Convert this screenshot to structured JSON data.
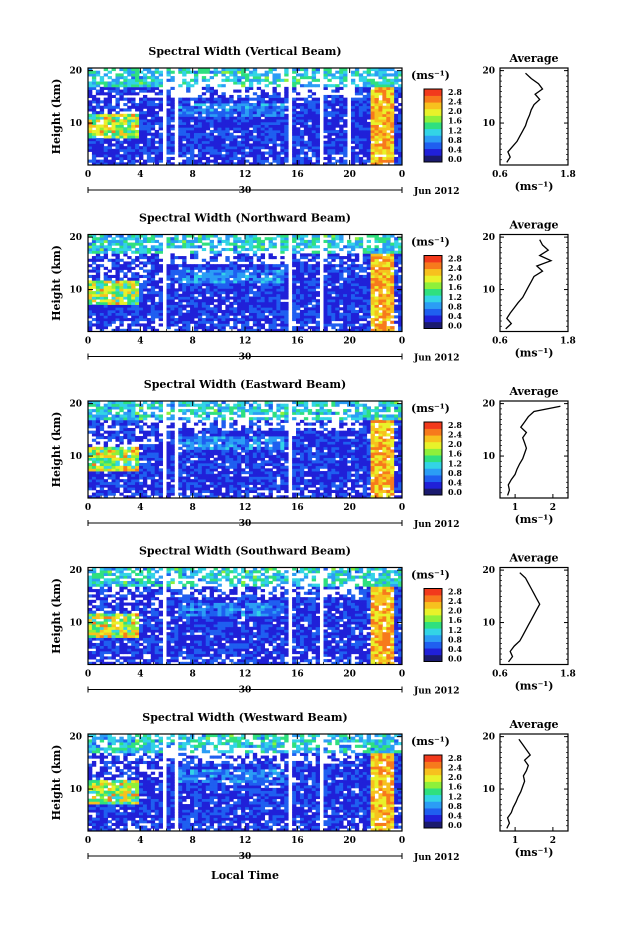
{
  "colorbar": {
    "unit": "(ms⁻¹)",
    "ticks": [
      "0.0",
      "0.4",
      "0.8",
      "1.2",
      "1.6",
      "2.0",
      "2.4",
      "2.8"
    ],
    "colors": [
      "#1a1a6e",
      "#2020d8",
      "#1f5ff0",
      "#2b9df5",
      "#33d4e6",
      "#2fe07f",
      "#8ef03a",
      "#e8f22a",
      "#f7c11e",
      "#f77a1c",
      "#f23a1c"
    ]
  },
  "xlabel": "Local Time",
  "date_label": "30",
  "month_label": "Jun 2012",
  "average_title": "Average",
  "average_unit": "(ms⁻¹)",
  "chart_data": [
    {
      "type": "heatmap",
      "title": "Spectral Width (Vertical Beam)",
      "ylabel": "Height (km)",
      "xticks": [
        "0",
        "4",
        "8",
        "12",
        "16",
        "20",
        "0"
      ],
      "xlim": [
        0,
        24
      ],
      "yticks": [
        "10",
        "20"
      ],
      "ylim": [
        2,
        20.5
      ],
      "gaps": [
        [
          5.6,
          6.0
        ],
        [
          6.6,
          7.0
        ],
        [
          15.4,
          15.7
        ],
        [
          17.6,
          17.9
        ],
        [
          19.7,
          20.0
        ]
      ],
      "avg_xticks": [
        "0.6",
        "1.8"
      ],
      "avg_xlim": [
        0.6,
        1.8
      ],
      "average_profile": {
        "height": [
          2.5,
          3.5,
          4.5,
          5.5,
          6.5,
          7.5,
          8.5,
          9.5,
          10.5,
          11.5,
          12.5,
          13.5,
          14.5,
          15.5,
          16.5,
          17.5,
          18.5,
          19.5
        ],
        "value": [
          0.72,
          0.78,
          0.74,
          0.82,
          0.9,
          0.95,
          1.0,
          1.05,
          1.08,
          1.12,
          1.15,
          1.2,
          1.3,
          1.22,
          1.35,
          1.28,
          1.15,
          1.05
        ]
      }
    },
    {
      "type": "heatmap",
      "title": "Spectral Width (Northward Beam)",
      "ylabel": "Height (km)",
      "xticks": [
        "0",
        "4",
        "8",
        "12",
        "16",
        "20",
        "0"
      ],
      "xlim": [
        0,
        24
      ],
      "yticks": [
        "10",
        "20"
      ],
      "ylim": [
        2,
        20.5
      ],
      "gaps": [
        [
          5.8,
          6.1
        ],
        [
          15.4,
          15.7
        ],
        [
          17.7,
          18.0
        ]
      ],
      "avg_xticks": [
        "0.6",
        "1.8"
      ],
      "avg_xlim": [
        0.6,
        1.8
      ],
      "average_profile": {
        "height": [
          2.5,
          3.5,
          4.5,
          5.5,
          6.5,
          7.5,
          8.5,
          9.5,
          10.5,
          11.5,
          12.5,
          13.5,
          14.5,
          15.5,
          16.5,
          17.5,
          18.5,
          19.5
        ],
        "value": [
          0.7,
          0.8,
          0.72,
          0.78,
          0.85,
          0.92,
          1.0,
          1.05,
          1.1,
          1.15,
          1.2,
          1.35,
          1.25,
          1.5,
          1.3,
          1.45,
          1.35,
          1.3
        ]
      }
    },
    {
      "type": "heatmap",
      "title": "Spectral Width (Eastward Beam)",
      "ylabel": "Height (km)",
      "xticks": [
        "0",
        "4",
        "8",
        "12",
        "16",
        "20",
        "0"
      ],
      "xlim": [
        0,
        24
      ],
      "yticks": [
        "10",
        "20"
      ],
      "ylim": [
        2,
        20.5
      ],
      "gaps": [
        [
          5.6,
          6.0
        ],
        [
          6.6,
          7.0
        ],
        [
          15.4,
          15.7
        ]
      ],
      "avg_xticks": [
        "1",
        "2"
      ],
      "avg_xlim": [
        0.6,
        2.4
      ],
      "average_profile": {
        "height": [
          2.5,
          3.5,
          4.5,
          5.5,
          6.5,
          7.5,
          8.5,
          9.5,
          10.5,
          11.5,
          12.5,
          13.5,
          14.5,
          15.5,
          16.5,
          17.5,
          18.5,
          19.5
        ],
        "value": [
          0.8,
          0.85,
          0.82,
          0.9,
          1.0,
          1.05,
          1.12,
          1.2,
          1.25,
          1.3,
          1.25,
          1.2,
          1.3,
          1.15,
          1.25,
          1.35,
          1.5,
          2.2
        ]
      }
    },
    {
      "type": "heatmap",
      "title": "Spectral Width (Southward Beam)",
      "ylabel": "Height (km)",
      "xticks": [
        "0",
        "4",
        "8",
        "12",
        "16",
        "20",
        "0"
      ],
      "xlim": [
        0,
        24
      ],
      "yticks": [
        "10",
        "20"
      ],
      "ylim": [
        2,
        20.5
      ],
      "gaps": [
        [
          5.7,
          6.0
        ],
        [
          15.3,
          15.6
        ],
        [
          17.8,
          18.1
        ]
      ],
      "avg_xticks": [
        "0.6",
        "1.8"
      ],
      "avg_xlim": [
        0.6,
        1.8
      ],
      "average_profile": {
        "height": [
          2.5,
          3.5,
          4.5,
          5.5,
          6.5,
          7.5,
          8.5,
          9.5,
          10.5,
          11.5,
          12.5,
          13.5,
          14.5,
          15.5,
          16.5,
          17.5,
          18.5,
          19.5
        ],
        "value": [
          0.75,
          0.82,
          0.78,
          0.85,
          0.95,
          1.0,
          1.05,
          1.1,
          1.15,
          1.2,
          1.25,
          1.3,
          1.25,
          1.2,
          1.15,
          1.1,
          1.05,
          0.95
        ]
      }
    },
    {
      "type": "heatmap",
      "title": "Spectral Width (Westward Beam)",
      "ylabel": "Height (km)",
      "xticks": [
        "0",
        "4",
        "8",
        "12",
        "16",
        "20",
        "0"
      ],
      "xlim": [
        0,
        24
      ],
      "yticks": [
        "10",
        "20"
      ],
      "ylim": [
        2,
        20.5
      ],
      "gaps": [
        [
          5.6,
          6.0
        ],
        [
          6.6,
          7.0
        ],
        [
          15.4,
          15.7
        ],
        [
          17.7,
          18.0
        ]
      ],
      "avg_xticks": [
        "1",
        "2"
      ],
      "avg_xlim": [
        0.6,
        2.4
      ],
      "average_profile": {
        "height": [
          2.5,
          3.5,
          4.5,
          5.5,
          6.5,
          7.5,
          8.5,
          9.5,
          10.5,
          11.5,
          12.5,
          13.5,
          14.5,
          15.5,
          16.5,
          17.5,
          18.5,
          19.5
        ],
        "value": [
          0.78,
          0.85,
          0.8,
          0.9,
          0.95,
          1.02,
          1.08,
          1.15,
          1.2,
          1.25,
          1.22,
          1.3,
          1.35,
          1.25,
          1.4,
          1.3,
          1.2,
          1.1
        ]
      }
    }
  ]
}
